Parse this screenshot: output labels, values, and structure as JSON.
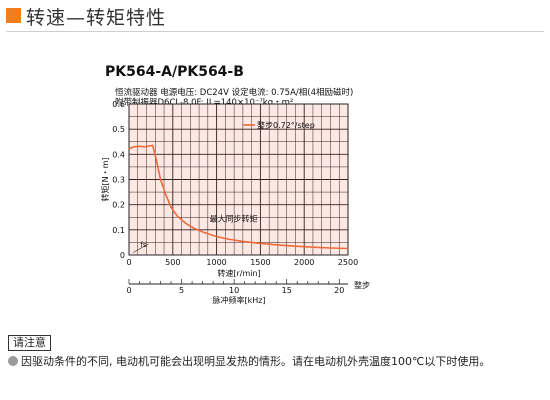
{
  "header": {
    "title": "转速—转矩特性",
    "accent_color": "#f07d1e"
  },
  "chart_title": "PK564-A/PK564-B",
  "specs": {
    "line1": "恒流驱动器  电源电压:  DC24V   设定电流:  0.75A/相(4相励磁时)",
    "line2": "附带制振器D6CL-8.0F:  JL=140×10⁻⁷kg・m²"
  },
  "chart_data": {
    "type": "line",
    "ylabel": "转矩[N・m]",
    "xlabel": "转速[r/min]",
    "x2label": "脉冲频率[kHz]",
    "x2label_right": "整步",
    "xlim": [
      0,
      2500
    ],
    "ylim": [
      0,
      0.6
    ],
    "x2lim": [
      0,
      20.83
    ],
    "x_ticks": [
      "0",
      "500",
      "1000",
      "1500",
      "2000",
      "2500"
    ],
    "y_ticks": [
      "0",
      "0.1",
      "0.2",
      "0.3",
      "0.4",
      "0.5",
      "0.6"
    ],
    "x2_ticks": [
      "0",
      "5",
      "10",
      "15",
      "20"
    ],
    "grid": true,
    "plot_background": "#fde9e4",
    "grid_color": "#3a1f1f",
    "series": [
      {
        "name": "整步0.72°/step",
        "color": "#ee6a3a",
        "x": [
          0,
          20,
          60,
          120,
          180,
          230,
          270,
          310,
          360,
          420,
          480,
          550,
          650,
          750,
          850,
          1000,
          1150,
          1300,
          1500,
          1700,
          1900,
          2100,
          2300,
          2500
        ],
        "y": [
          0.42,
          0.425,
          0.43,
          0.432,
          0.43,
          0.433,
          0.435,
          0.38,
          0.3,
          0.24,
          0.19,
          0.155,
          0.125,
          0.105,
          0.09,
          0.073,
          0.062,
          0.054,
          0.046,
          0.04,
          0.035,
          0.031,
          0.028,
          0.026
        ]
      }
    ],
    "annotations": [
      {
        "text": "最大同步转矩",
        "x": 920,
        "y": 0.2
      },
      {
        "text": "fs",
        "x": 130,
        "y": 0.02
      }
    ],
    "legend_position": "top-right"
  },
  "notes": {
    "title": "请注意",
    "text": "因驱动条件的不同, 电动机可能会出现明显发热的情形。请在电动机外壳温度100℃以下时使用。"
  }
}
